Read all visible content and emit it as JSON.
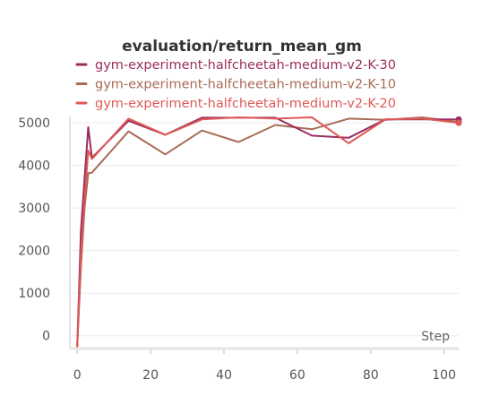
{
  "chart_data": {
    "type": "line",
    "title": "evaluation/return_mean_gm",
    "xlabel": "Step",
    "ylabel": "",
    "xlim": [
      -2,
      104
    ],
    "ylim": [
      -300,
      5150
    ],
    "xticks": [
      0,
      20,
      40,
      60,
      80,
      100
    ],
    "yticks": [
      0,
      1000,
      2000,
      3000,
      4000,
      5000
    ],
    "grid": true,
    "legend_position": "top",
    "series": [
      {
        "name": "gym-experiment-halfcheetah-medium-v2-K-30",
        "color": "#9b2c5e",
        "x": [
          0,
          1,
          2,
          3,
          4,
          14,
          24,
          34,
          44,
          54,
          64,
          74,
          84,
          94,
          104
        ],
        "y": [
          -250,
          2450,
          3700,
          4900,
          4180,
          5050,
          4720,
          5120,
          5120,
          5120,
          4700,
          4650,
          5080,
          5080,
          5080
        ]
      },
      {
        "name": "gym-experiment-halfcheetah-medium-v2-K-10",
        "color": "#a96b55",
        "x": [
          0,
          1,
          2,
          3,
          4,
          14,
          24,
          34,
          44,
          54,
          64,
          74,
          84,
          94,
          104
        ],
        "y": [
          -250,
          1600,
          3000,
          3820,
          3830,
          4800,
          4260,
          4820,
          4550,
          4950,
          4850,
          5100,
          5070,
          5130,
          5020
        ]
      },
      {
        "name": "gym-experiment-halfcheetah-medium-v2-K-20",
        "color": "#de5a57",
        "x": [
          0,
          1,
          2,
          3,
          4,
          14,
          24,
          34,
          44,
          54,
          64,
          74,
          84,
          94,
          104
        ],
        "y": [
          -250,
          1900,
          3200,
          4350,
          4150,
          5100,
          4720,
          5080,
          5130,
          5100,
          5130,
          4520,
          5080,
          5100,
          5000
        ]
      }
    ]
  }
}
